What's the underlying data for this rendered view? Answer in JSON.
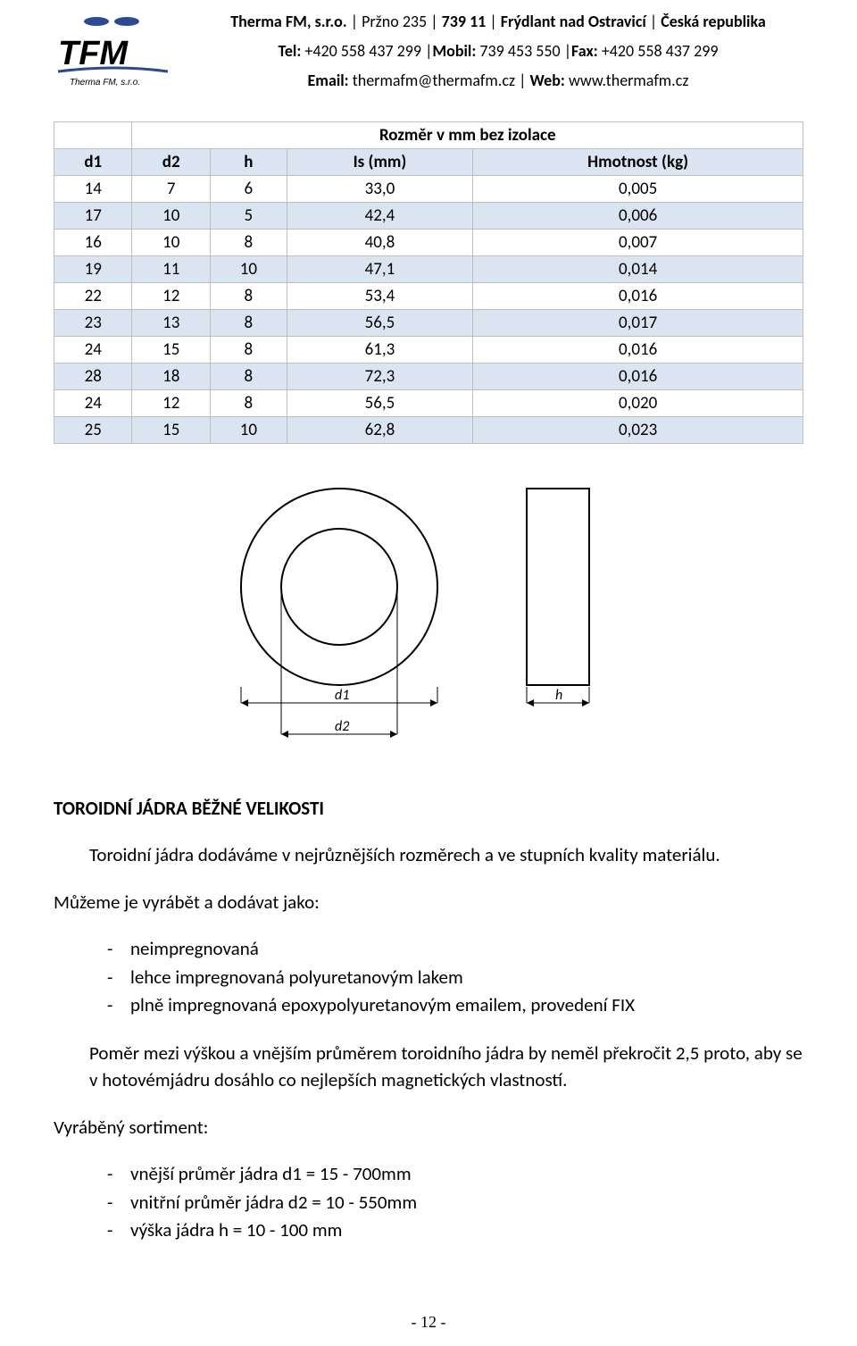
{
  "header": {
    "company": "Therma FM, s.r.o.",
    "address_parts": [
      "Pržno 235",
      "739 11",
      "Frýdlant nad Ostravicí",
      "Česká republika"
    ],
    "tel_label": "Tel:",
    "tel": "+420 558 437 299",
    "mobil_label": "Mobil:",
    "mobil": "739 453 550",
    "fax_label": "Fax:",
    "fax": "+420 558 437 299",
    "email_label": "Email:",
    "email": "thermafm@thermafm.cz",
    "web_label": "Web:",
    "web": "www.thermafm.cz"
  },
  "table": {
    "title": "Rozměr v mm bez izolace",
    "columns": [
      "d1",
      "d2",
      "h",
      "Is (mm)",
      "Hmotnost (kg)"
    ],
    "rows": [
      [
        "14",
        "7",
        "6",
        "33,0",
        "0,005"
      ],
      [
        "17",
        "10",
        "5",
        "42,4",
        "0,006"
      ],
      [
        "16",
        "10",
        "8",
        "40,8",
        "0,007"
      ],
      [
        "19",
        "11",
        "10",
        "47,1",
        "0,014"
      ],
      [
        "22",
        "12",
        "8",
        "53,4",
        "0,016"
      ],
      [
        "23",
        "13",
        "8",
        "56,5",
        "0,017"
      ],
      [
        "24",
        "15",
        "8",
        "61,3",
        "0,016"
      ],
      [
        "28",
        "18",
        "8",
        "72,3",
        "0,016"
      ],
      [
        "24",
        "12",
        "8",
        "56,5",
        "0,020"
      ],
      [
        "25",
        "15",
        "10",
        "62,8",
        "0,023"
      ]
    ],
    "header_bg": "#dbe5f1",
    "row_odd_bg": "#dbe5f1",
    "row_even_bg": "#ffffff",
    "border_color": "#bfbfbf"
  },
  "diagram": {
    "labels": {
      "d1": "d1",
      "d2": "d2",
      "h": "h"
    }
  },
  "section": {
    "title": "TOROIDNÍ JÁDRA BĚŽNÉ VELIKOSTI",
    "intro": "Toroidní jádra dodáváme v nejrůznějších rozměrech a ve stupních kvality materiálu.",
    "can_make": "Můžeme je vyrábět a dodávat jako:",
    "options": [
      "neimpregnovaná",
      "lehce impregnovaná polyuretanovým lakem",
      "plně impregnovaná epoxypolyuretanovým emailem, provedení FIX"
    ],
    "ratio": "Poměr mezi výškou a vnějším průměrem toroidního jádra by neměl překročit 2,5 proto, aby se v hotovémjádru dosáhlo co nejlepších magnetických vlastností.",
    "assort_label": "Vyráběný sortiment:",
    "assort": [
      "vnější průměr jádra d1 = 15 - 700mm",
      "vnitřní průměr jádra d2 = 10 - 550mm",
      "výška jádra h = 10 - 100 mm"
    ]
  },
  "page_number": "- 12 -"
}
